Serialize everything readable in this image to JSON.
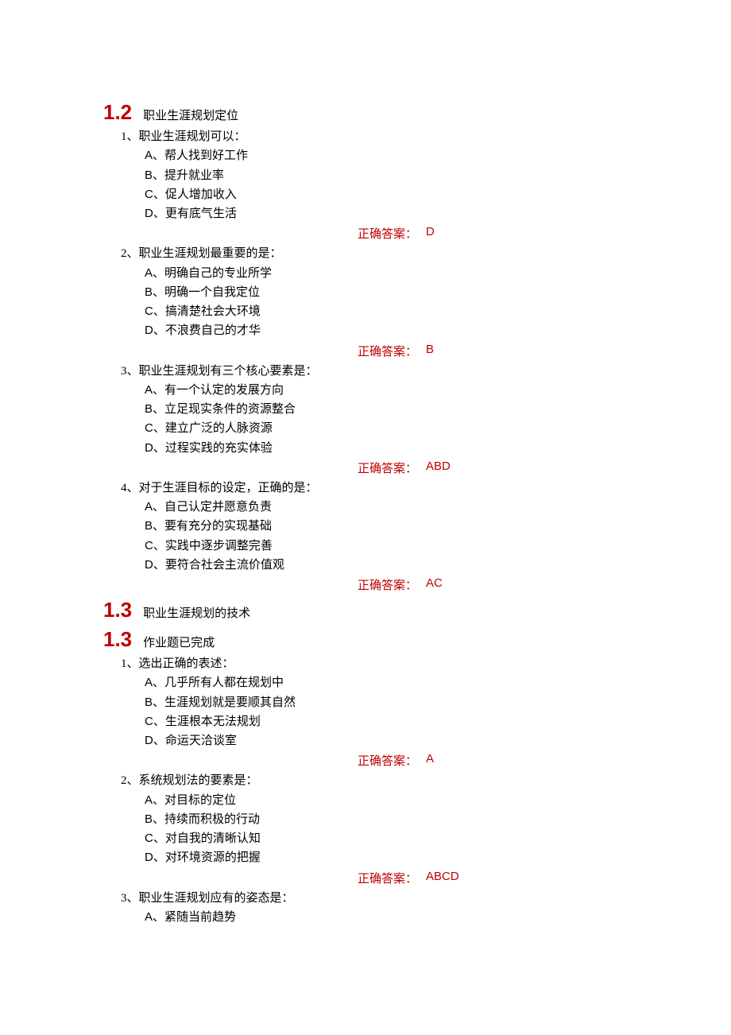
{
  "colors": {
    "accent": "#c00000",
    "text": "#000000",
    "background": "#ffffff"
  },
  "typography": {
    "section_num_fontsize": 26,
    "body_fontsize": 15,
    "section_num_font": "Arial",
    "body_font": "SimSun"
  },
  "answer_label": "正确答案：",
  "sections": [
    {
      "num": "1.2",
      "title": "职业生涯规划定位",
      "questions": [
        {
          "stem": "1、职业生涯规划可以：",
          "options": [
            {
              "letter": "A",
              "text": "帮人找到好工作"
            },
            {
              "letter": "B",
              "text": "提升就业率"
            },
            {
              "letter": "C",
              "text": "促人增加收入"
            },
            {
              "letter": "D",
              "text": "更有底气生活"
            }
          ],
          "answer": "D"
        },
        {
          "stem": "2、职业生涯规划最重要的是：",
          "options": [
            {
              "letter": "A",
              "text": "明确自己的专业所学"
            },
            {
              "letter": "B",
              "text": "明确一个自我定位"
            },
            {
              "letter": "C",
              "text": "搞清楚社会大环境"
            },
            {
              "letter": "D",
              "text": "不浪费自己的才华"
            }
          ],
          "answer": "B"
        },
        {
          "stem": "3、职业生涯规划有三个核心要素是：",
          "options": [
            {
              "letter": "A",
              "text": "有一个认定的发展方向"
            },
            {
              "letter": "B",
              "text": "立足现实条件的资源整合"
            },
            {
              "letter": "C",
              "text": "建立广泛的人脉资源"
            },
            {
              "letter": "D",
              "text": "过程实践的充实体验"
            }
          ],
          "answer": "ABD"
        },
        {
          "stem": "4、对于生涯目标的设定，正确的是：",
          "options": [
            {
              "letter": "A",
              "text": "自己认定并愿意负责"
            },
            {
              "letter": "B",
              "text": "要有充分的实现基础"
            },
            {
              "letter": "C",
              "text": "实践中逐步调整完善"
            },
            {
              "letter": "D",
              "text": "要符合社会主流价值观"
            }
          ],
          "answer": "AC"
        }
      ]
    },
    {
      "num": "1.3",
      "title": "职业生涯规划的技术",
      "questions": []
    },
    {
      "num": "1.3",
      "title": "作业题已完成",
      "questions": [
        {
          "stem": "1、选出正确的表述：",
          "options": [
            {
              "letter": "A",
              "text": "几乎所有人都在规划中"
            },
            {
              "letter": "B",
              "text": "生涯规划就是要顺其自然"
            },
            {
              "letter": "C",
              "text": "生涯根本无法规划"
            },
            {
              "letter": "D",
              "text": "命运天洽谈室"
            }
          ],
          "answer": "A"
        },
        {
          "stem": "2、系统规划法的要素是：",
          "options": [
            {
              "letter": "A",
              "text": "对目标的定位"
            },
            {
              "letter": "B",
              "text": "持续而积极的行动"
            },
            {
              "letter": "C",
              "text": "对自我的清晰认知"
            },
            {
              "letter": "D",
              "text": "对环境资源的把握"
            }
          ],
          "answer": "ABCD"
        },
        {
          "stem": "3、职业生涯规划应有的姿态是：",
          "options": [
            {
              "letter": "A",
              "text": "紧随当前趋势"
            }
          ],
          "answer": null
        }
      ]
    }
  ]
}
